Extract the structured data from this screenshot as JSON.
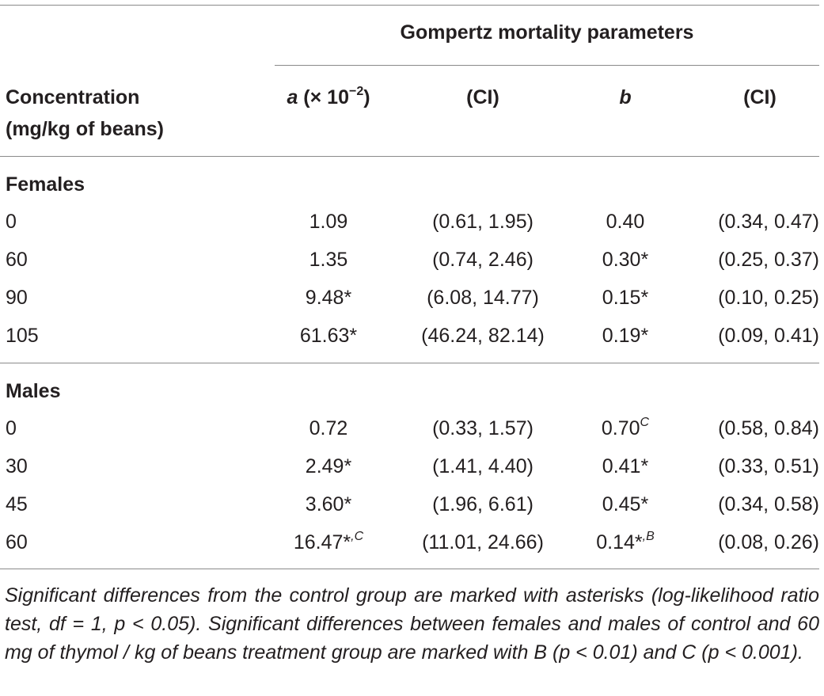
{
  "table": {
    "group_header": "Gompertz mortality parameters",
    "col_concentration_line1": "Concentration",
    "col_concentration_line2": "(mg/kg of beans)",
    "col_a_var": "a",
    "col_a_rest": " (× 10",
    "col_a_exp": "−2",
    "col_a_close": ")",
    "col_ci1": "(CI)",
    "col_b": "b",
    "col_ci2": "(CI)",
    "sections": [
      {
        "title": "Females",
        "rows": [
          {
            "conc": "0",
            "a": "1.09",
            "a_sup": "",
            "ci_a": "(0.61, 1.95)",
            "b": "0.40",
            "b_sup": "",
            "ci_b": "(0.34, 0.47)"
          },
          {
            "conc": "60",
            "a": "1.35",
            "a_sup": "",
            "ci_a": "(0.74, 2.46)",
            "b": "0.30*",
            "b_sup": "",
            "ci_b": "(0.25, 0.37)"
          },
          {
            "conc": "90",
            "a": "9.48*",
            "a_sup": "",
            "ci_a": "(6.08, 14.77)",
            "b": "0.15*",
            "b_sup": "",
            "ci_b": "(0.10, 0.25)"
          },
          {
            "conc": "105",
            "a": "61.63*",
            "a_sup": "",
            "ci_a": "(46.24, 82.14)",
            "b": "0.19*",
            "b_sup": "",
            "ci_b": "(0.09, 0.41)"
          }
        ]
      },
      {
        "title": "Males",
        "rows": [
          {
            "conc": "0",
            "a": "0.72",
            "a_sup": "",
            "ci_a": "(0.33, 1.57)",
            "b": "0.70",
            "b_sup": "C",
            "ci_b": "(0.58, 0.84)"
          },
          {
            "conc": "30",
            "a": "2.49*",
            "a_sup": "",
            "ci_a": "(1.41, 4.40)",
            "b": "0.41*",
            "b_sup": "",
            "ci_b": "(0.33, 0.51)"
          },
          {
            "conc": "45",
            "a": "3.60*",
            "a_sup": "",
            "ci_a": "(1.96, 6.61)",
            "b": "0.45*",
            "b_sup": "",
            "ci_b": "(0.34, 0.58)"
          },
          {
            "conc": "60",
            "a": "16.47*",
            "a_sup": ",C",
            "ci_a": "(11.01, 24.66)",
            "b": "0.14*",
            "b_sup": ",B",
            "ci_b": "(0.08, 0.26)"
          }
        ]
      }
    ],
    "footnote": "Significant differences from the control group are marked with asterisks (log-likelihood ratio test, df = 1, p <  0.05). Significant differences between females and males of control and 60 mg of thymol / kg of beans treatment group are marked with B (p < 0.01) and C (p < 0.001)."
  }
}
